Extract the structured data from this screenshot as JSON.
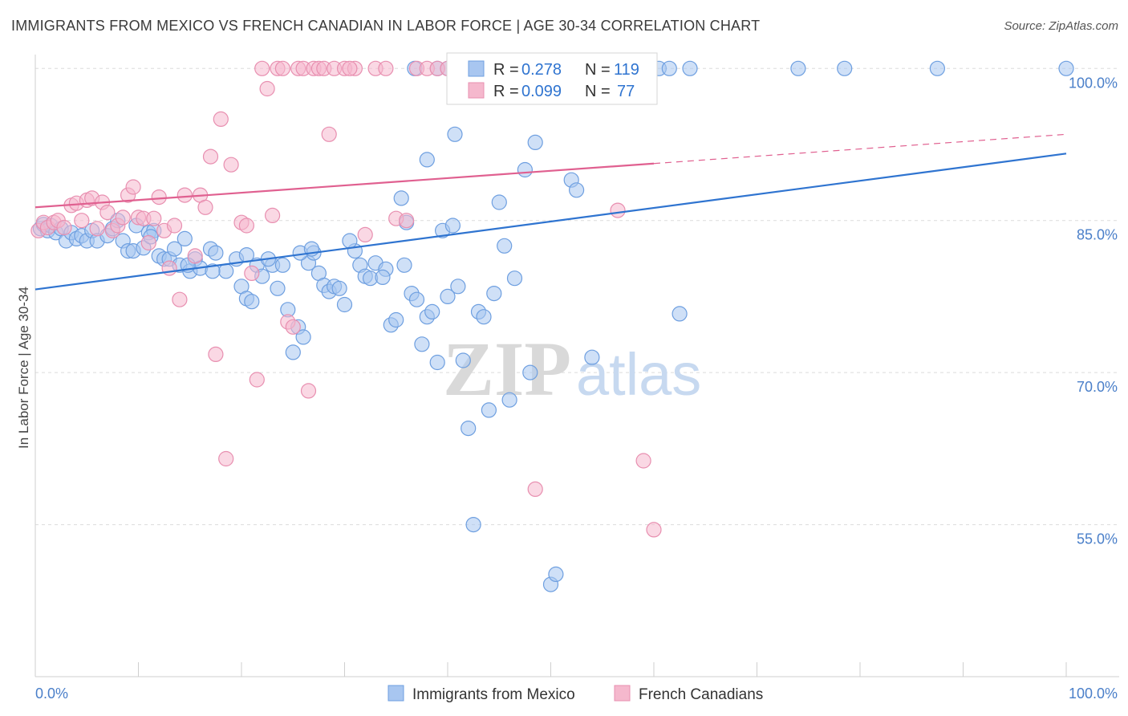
{
  "header": {
    "title": "IMMIGRANTS FROM MEXICO VS FRENCH CANADIAN IN LABOR FORCE | AGE 30-34 CORRELATION CHART",
    "source": "Source: ZipAtlas.com"
  },
  "watermark": {
    "zip": "ZIP",
    "atlas": "atlas"
  },
  "chart_data": {
    "type": "scatter",
    "title": "IMMIGRANTS FROM MEXICO VS FRENCH CANADIAN IN LABOR FORCE | AGE 30-34 CORRELATION CHART",
    "xlabel": "",
    "ylabel": "In Labor Force | Age 30-34",
    "xlim": [
      0,
      100
    ],
    "ylim": [
      40,
      102
    ],
    "x_tick_labels": {
      "min": "0.0%",
      "max": "100.0%"
    },
    "y_ticks": [
      {
        "value": 100,
        "label": "100.0%"
      },
      {
        "value": 85,
        "label": "85.0%"
      },
      {
        "value": 70,
        "label": "70.0%"
      },
      {
        "value": 55,
        "label": "55.0%"
      }
    ],
    "grid": true,
    "legend_placement": "bottom",
    "stats": [
      {
        "r_label": "R =",
        "r_value": "0.278",
        "n_label": "N =",
        "n_value": "119"
      },
      {
        "r_label": "R =",
        "r_value": "0.099",
        "n_label": "N =",
        "n_value": "77"
      }
    ],
    "series": [
      {
        "name": "Immigrants from Mexico",
        "color": "#6e9fe0",
        "fill": "#a8c6f0",
        "line_color": "#2f74d0",
        "trend": {
          "x0": 0,
          "y0": 78.2,
          "x1": 100,
          "y1": 91.6,
          "dash_from": null
        },
        "points": [
          [
            0.5,
            84.2
          ],
          [
            0.8,
            84.6
          ],
          [
            1.2,
            84.0
          ],
          [
            1.5,
            84.5
          ],
          [
            2.0,
            83.8
          ],
          [
            2.5,
            84.2
          ],
          [
            3.0,
            83.0
          ],
          [
            3.5,
            83.8
          ],
          [
            4.0,
            83.2
          ],
          [
            4.5,
            83.5
          ],
          [
            5.0,
            83.0
          ],
          [
            5.5,
            84.0
          ],
          [
            6.0,
            83.0
          ],
          [
            7.0,
            83.5
          ],
          [
            7.5,
            84.2
          ],
          [
            8.0,
            85.0
          ],
          [
            8.5,
            83.0
          ],
          [
            9.0,
            82.0
          ],
          [
            9.5,
            82.0
          ],
          [
            10.5,
            82.3
          ],
          [
            11.0,
            83.8
          ],
          [
            11.5,
            84.0
          ],
          [
            12.0,
            81.5
          ],
          [
            12.5,
            81.2
          ],
          [
            13.0,
            81.2
          ],
          [
            13.5,
            82.2
          ],
          [
            14.0,
            80.6
          ],
          [
            14.5,
            83.2
          ],
          [
            15.0,
            80.0
          ],
          [
            15.5,
            81.2
          ],
          [
            16.0,
            80.3
          ],
          [
            17.0,
            82.2
          ],
          [
            17.5,
            81.8
          ],
          [
            18.5,
            80.0
          ],
          [
            19.5,
            81.2
          ],
          [
            20.0,
            78.5
          ],
          [
            20.5,
            77.3
          ],
          [
            21.5,
            80.6
          ],
          [
            21.0,
            77.0
          ],
          [
            22.0,
            79.5
          ],
          [
            23.0,
            80.6
          ],
          [
            23.5,
            78.3
          ],
          [
            24.0,
            80.6
          ],
          [
            24.5,
            76.2
          ],
          [
            25.0,
            72.0
          ],
          [
            25.5,
            74.5
          ],
          [
            26.0,
            73.5
          ],
          [
            26.5,
            80.8
          ],
          [
            27.0,
            81.8
          ],
          [
            27.5,
            79.8
          ],
          [
            28.0,
            78.6
          ],
          [
            28.5,
            78.0
          ],
          [
            29.0,
            78.5
          ],
          [
            29.5,
            78.3
          ],
          [
            30.0,
            76.7
          ],
          [
            31.0,
            82.0
          ],
          [
            31.5,
            80.6
          ],
          [
            32.0,
            79.5
          ],
          [
            32.5,
            79.3
          ],
          [
            33.0,
            80.8
          ],
          [
            34.0,
            80.2
          ],
          [
            34.5,
            74.7
          ],
          [
            35.0,
            75.2
          ],
          [
            35.5,
            87.2
          ],
          [
            36.0,
            84.8
          ],
          [
            36.5,
            77.8
          ],
          [
            37.0,
            77.2
          ],
          [
            37.5,
            72.8
          ],
          [
            38.0,
            75.5
          ],
          [
            38.5,
            76.0
          ],
          [
            39.5,
            84.0
          ],
          [
            39.0,
            71.0
          ],
          [
            40.0,
            77.5
          ],
          [
            40.5,
            84.5
          ],
          [
            41.0,
            78.5
          ],
          [
            41.5,
            71.2
          ],
          [
            42.0,
            64.5
          ],
          [
            42.5,
            55.0
          ],
          [
            43.0,
            76.0
          ],
          [
            43.5,
            75.5
          ],
          [
            44.0,
            66.3
          ],
          [
            44.5,
            77.8
          ],
          [
            45.0,
            86.8
          ],
          [
            45.5,
            82.5
          ],
          [
            46.0,
            67.3
          ],
          [
            46.5,
            79.3
          ],
          [
            47.5,
            90.0
          ],
          [
            48.0,
            70.0
          ],
          [
            48.5,
            92.7
          ],
          [
            50.0,
            49.1
          ],
          [
            50.5,
            50.1
          ],
          [
            51.0,
            100
          ],
          [
            52.0,
            89.0
          ],
          [
            52.5,
            88.0
          ],
          [
            53.0,
            100
          ],
          [
            54.0,
            71.5
          ],
          [
            55.0,
            100
          ],
          [
            57.0,
            100
          ],
          [
            59.0,
            100
          ],
          [
            60.5,
            100
          ],
          [
            61.5,
            100
          ],
          [
            62.5,
            75.8
          ],
          [
            74.0,
            100
          ],
          [
            78.5,
            100
          ],
          [
            87.5,
            100
          ],
          [
            100,
            100
          ],
          [
            36.8,
            100
          ],
          [
            39.0,
            100
          ],
          [
            40.0,
            100
          ],
          [
            44.0,
            100
          ],
          [
            45.5,
            100
          ],
          [
            46.5,
            100
          ],
          [
            47.5,
            100
          ],
          [
            48.5,
            100
          ],
          [
            49.5,
            100
          ],
          [
            63.5,
            100
          ],
          [
            40.7,
            93.5
          ],
          [
            38.0,
            91.0
          ],
          [
            20.5,
            81.6
          ],
          [
            11.2,
            83.4
          ],
          [
            17.2,
            80.0
          ],
          [
            22.6,
            81.2
          ],
          [
            14.8,
            80.6
          ],
          [
            25.7,
            81.8
          ],
          [
            30.5,
            83.0
          ],
          [
            35.8,
            80.6
          ],
          [
            9.8,
            84.5
          ],
          [
            26.8,
            82.2
          ],
          [
            33.7,
            79.4
          ]
        ]
      },
      {
        "name": "French Canadians",
        "color": "#e88fb0",
        "fill": "#f5b8cd",
        "line_color": "#e06090",
        "trend": {
          "x0": 0,
          "y0": 86.3,
          "x1": 100,
          "y1": 93.5,
          "dash_from": 60
        },
        "points": [
          [
            0.3,
            84.0
          ],
          [
            0.8,
            84.8
          ],
          [
            1.2,
            84.3
          ],
          [
            1.8,
            84.8
          ],
          [
            2.2,
            85.0
          ],
          [
            2.8,
            84.3
          ],
          [
            3.5,
            86.5
          ],
          [
            4.0,
            86.7
          ],
          [
            4.5,
            85.0
          ],
          [
            5.0,
            87.0
          ],
          [
            5.5,
            87.2
          ],
          [
            6.0,
            84.2
          ],
          [
            6.5,
            86.8
          ],
          [
            7.0,
            85.8
          ],
          [
            7.5,
            84.0
          ],
          [
            8.0,
            84.5
          ],
          [
            8.5,
            85.3
          ],
          [
            9.0,
            87.5
          ],
          [
            9.5,
            88.3
          ],
          [
            10.0,
            85.3
          ],
          [
            10.5,
            85.2
          ],
          [
            11.0,
            82.8
          ],
          [
            11.5,
            85.2
          ],
          [
            12.0,
            87.3
          ],
          [
            12.5,
            84.0
          ],
          [
            13.0,
            80.3
          ],
          [
            13.5,
            84.5
          ],
          [
            14.0,
            77.2
          ],
          [
            14.5,
            87.5
          ],
          [
            15.5,
            81.5
          ],
          [
            16.0,
            87.5
          ],
          [
            16.5,
            86.3
          ],
          [
            17.0,
            91.3
          ],
          [
            17.5,
            71.8
          ],
          [
            18.0,
            95.0
          ],
          [
            18.5,
            61.5
          ],
          [
            19.0,
            90.5
          ],
          [
            20.0,
            84.8
          ],
          [
            20.5,
            84.5
          ],
          [
            21.0,
            79.8
          ],
          [
            21.5,
            69.3
          ],
          [
            22.0,
            100
          ],
          [
            22.5,
            98.0
          ],
          [
            23.0,
            85.5
          ],
          [
            23.5,
            100
          ],
          [
            24.0,
            100
          ],
          [
            24.5,
            75.0
          ],
          [
            25.0,
            74.5
          ],
          [
            25.5,
            100
          ],
          [
            26.0,
            100
          ],
          [
            26.5,
            68.2
          ],
          [
            27.0,
            100
          ],
          [
            27.5,
            100
          ],
          [
            28.0,
            100
          ],
          [
            28.5,
            93.5
          ],
          [
            29.0,
            100
          ],
          [
            30.0,
            100
          ],
          [
            31.0,
            100
          ],
          [
            32.0,
            83.6
          ],
          [
            33.0,
            100
          ],
          [
            34.0,
            100
          ],
          [
            35.0,
            85.2
          ],
          [
            36.0,
            85.0
          ],
          [
            37.0,
            100
          ],
          [
            38.0,
            100
          ],
          [
            39.0,
            100
          ],
          [
            40.0,
            100
          ],
          [
            41.0,
            100
          ],
          [
            43.0,
            100
          ],
          [
            45.0,
            100
          ],
          [
            48.0,
            100
          ],
          [
            48.5,
            58.5
          ],
          [
            56.5,
            86.0
          ],
          [
            57.5,
            100
          ],
          [
            59.0,
            61.3
          ],
          [
            60.0,
            54.5
          ],
          [
            30.5,
            100
          ]
        ]
      }
    ]
  },
  "legend": {
    "items": [
      {
        "label": "Immigrants from Mexico"
      },
      {
        "label": "French Canadians"
      }
    ]
  }
}
